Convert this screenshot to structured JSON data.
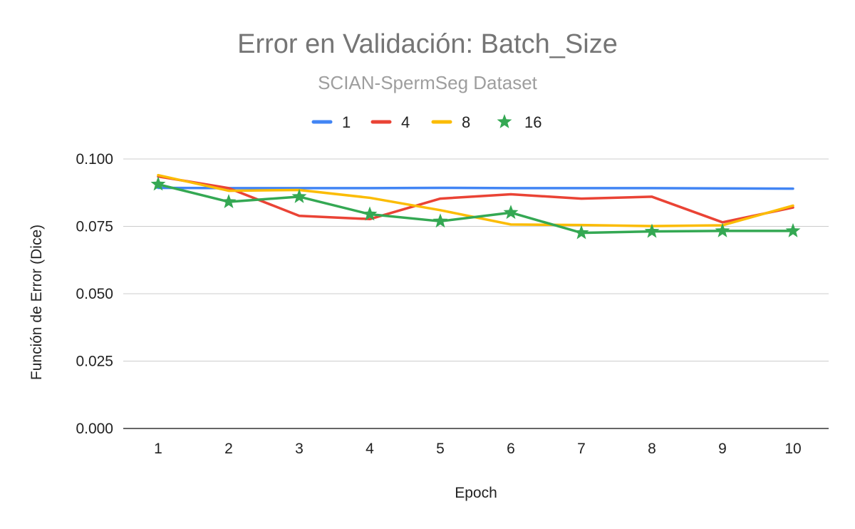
{
  "chart_data": {
    "type": "line",
    "title": "Error en Validación: Batch_Size",
    "subtitle": "SCIAN-SpermSeg Dataset",
    "xlabel": "Epoch",
    "ylabel": "Función de Error (Dice)",
    "categories": [
      "1",
      "2",
      "3",
      "4",
      "5",
      "6",
      "7",
      "8",
      "9",
      "10"
    ],
    "ylim": [
      0,
      0.1
    ],
    "yticks": [
      "0.000",
      "0.025",
      "0.050",
      "0.075",
      "0.100"
    ],
    "grid": true,
    "legend_position": "top",
    "series": [
      {
        "name": "1",
        "color": "#4285F4",
        "marker": "none",
        "values": [
          0.0893,
          0.0892,
          0.0892,
          0.0892,
          0.0893,
          0.0892,
          0.0892,
          0.0892,
          0.0891,
          0.089
        ]
      },
      {
        "name": "4",
        "color": "#EA4335",
        "marker": "none",
        "values": [
          0.0935,
          0.0892,
          0.0789,
          0.0777,
          0.0853,
          0.0869,
          0.0853,
          0.086,
          0.0765,
          0.082
        ]
      },
      {
        "name": "8",
        "color": "#FBBC04",
        "marker": "none",
        "values": [
          0.094,
          0.0882,
          0.0885,
          0.0856,
          0.081,
          0.0757,
          0.0755,
          0.0751,
          0.0754,
          0.0827
        ]
      },
      {
        "name": "16",
        "color": "#34A853",
        "marker": "star",
        "values": [
          0.0906,
          0.0841,
          0.086,
          0.0795,
          0.0769,
          0.0801,
          0.0726,
          0.0731,
          0.0733,
          0.0733
        ]
      }
    ]
  }
}
